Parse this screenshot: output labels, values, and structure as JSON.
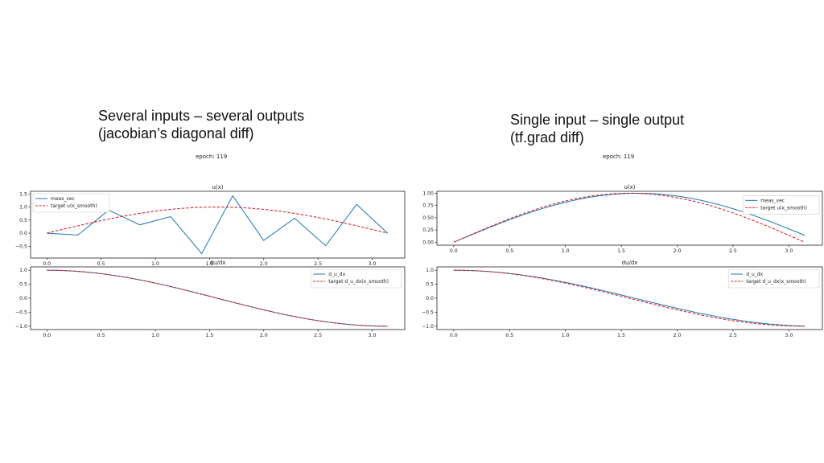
{
  "slide": {
    "left_heading": [
      "Several inputs – several outputs",
      "(jacobian’s diagonal diff)"
    ],
    "right_heading": [
      "Single input – single output",
      "(tf.grad diff)"
    ],
    "left_epoch": "epoch: 119",
    "right_epoch": "epoch: 119"
  },
  "colors": {
    "series_blue": "#1f77b4",
    "target_red": "#d62728",
    "frame": "#000000"
  },
  "chart_data": [
    {
      "type": "line",
      "title": "u(x)",
      "xlim": [
        -0.15,
        3.3
      ],
      "ylim": [
        -0.95,
        1.6
      ],
      "xticks": [
        0.0,
        0.5,
        1.0,
        1.5,
        2.0,
        2.5,
        3.0
      ],
      "xtick_labels": [
        "0.0",
        "0.5",
        "1.0",
        "1.5",
        "2.0",
        "2.5",
        "3.0"
      ],
      "yticks": [
        -0.5,
        0.0,
        0.5,
        1.0,
        1.5
      ],
      "ytick_labels": [
        "−0.5",
        "0.0",
        "0.5",
        "1.0",
        "1.5"
      ],
      "legend_position": "upper-left",
      "series": [
        {
          "name": "meas_vec",
          "style": "solid",
          "color": "#1f77b4",
          "x": [
            0.0,
            0.285,
            0.571,
            0.857,
            1.142,
            1.428,
            1.714,
            1.999,
            2.285,
            2.571,
            2.856,
            3.142
          ],
          "y": [
            0.0,
            -0.07,
            0.88,
            0.32,
            0.63,
            -0.78,
            1.43,
            -0.28,
            0.57,
            -0.48,
            1.1,
            0.0
          ]
        },
        {
          "name": "target u(x_smooth)",
          "style": "dashed",
          "color": "#d62728",
          "function": "sin",
          "x_range": [
            0,
            3.1416
          ]
        }
      ]
    },
    {
      "type": "line",
      "title": "du/dx",
      "xlim": [
        -0.15,
        3.3
      ],
      "ylim": [
        -1.12,
        1.12
      ],
      "xticks": [
        0.0,
        0.5,
        1.0,
        1.5,
        2.0,
        2.5,
        3.0
      ],
      "xtick_labels": [
        "0.0",
        "0.5",
        "1.0",
        "1.5",
        "2.0",
        "2.5",
        "3.0"
      ],
      "yticks": [
        -1.0,
        -0.5,
        0.0,
        0.5,
        1.0
      ],
      "ytick_labels": [
        "−1.0",
        "−0.5",
        "0.0",
        "0.5",
        "1.0"
      ],
      "legend_position": "upper-right",
      "series": [
        {
          "name": "d_u_dx",
          "style": "solid",
          "color": "#1f77b4",
          "function": "cos",
          "x_range": [
            0,
            3.1416
          ]
        },
        {
          "name": "target d_u_dx(x_smooth)",
          "style": "dashed",
          "color": "#d62728",
          "function": "cos",
          "x_range": [
            0,
            3.1416
          ]
        }
      ]
    },
    {
      "type": "line",
      "title": "u(x)",
      "xlim": [
        -0.15,
        3.3
      ],
      "ylim": [
        -0.06,
        1.04
      ],
      "xticks": [
        0.0,
        0.5,
        1.0,
        1.5,
        2.0,
        2.5,
        3.0
      ],
      "xtick_labels": [
        "0.0",
        "0.5",
        "1.0",
        "1.5",
        "2.0",
        "2.5",
        "3.0"
      ],
      "yticks": [
        0.0,
        0.25,
        0.5,
        0.75,
        1.0
      ],
      "ytick_labels": [
        "0.00",
        "0.25",
        "0.50",
        "0.75",
        "1.00"
      ],
      "legend_position": "right",
      "series": [
        {
          "name": "meas_vec",
          "style": "solid",
          "color": "#1f77b4",
          "function": "sin_shift",
          "x_range": [
            0,
            3.1416
          ]
        },
        {
          "name": "target u(x_smooth)",
          "style": "dashed",
          "color": "#d62728",
          "function": "sin",
          "x_range": [
            0,
            3.1416
          ]
        }
      ]
    },
    {
      "type": "line",
      "title": "du/dx",
      "xlim": [
        -0.15,
        3.3
      ],
      "ylim": [
        -1.12,
        1.12
      ],
      "xticks": [
        0.0,
        0.5,
        1.0,
        1.5,
        2.0,
        2.5,
        3.0
      ],
      "xtick_labels": [
        "0.0",
        "0.5",
        "1.0",
        "1.5",
        "2.0",
        "2.5",
        "3.0"
      ],
      "yticks": [
        -1.0,
        -0.5,
        0.0,
        0.5,
        1.0
      ],
      "ytick_labels": [
        "−1.0",
        "−0.5",
        "0.0",
        "0.5",
        "1.0"
      ],
      "legend_position": "upper-right",
      "series": [
        {
          "name": "d_u_dx",
          "style": "solid",
          "color": "#1f77b4",
          "function": "cos_shift",
          "x_range": [
            0,
            3.1416
          ]
        },
        {
          "name": "target d_u_dx(x_smooth)",
          "style": "dashed",
          "color": "#d62728",
          "function": "cos",
          "x_range": [
            0,
            3.1416
          ]
        }
      ]
    }
  ]
}
